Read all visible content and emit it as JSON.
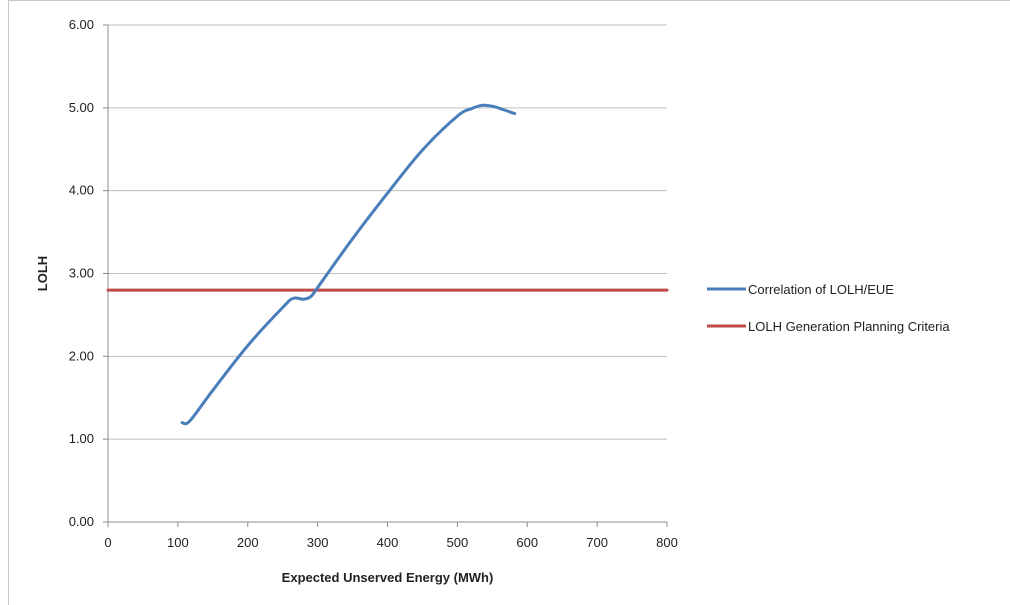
{
  "chart_data": {
    "type": "line",
    "title": "",
    "xlabel": "Expected Unserved Energy (MWh)",
    "ylabel": "LOLH",
    "xlim": [
      0,
      800
    ],
    "ylim": [
      0,
      6
    ],
    "x_ticks": [
      0,
      100,
      200,
      300,
      400,
      500,
      600,
      700,
      800
    ],
    "x_tick_labels": [
      "0",
      "100",
      "200",
      "300",
      "400",
      "500",
      "600",
      "700",
      "800"
    ],
    "y_ticks": [
      0,
      1,
      2,
      3,
      4,
      5,
      6
    ],
    "y_tick_labels": [
      "0.00",
      "1.00",
      "2.00",
      "3.00",
      "4.00",
      "5.00",
      "6.00"
    ],
    "grid": "horizontal",
    "legend_position": "right",
    "series": [
      {
        "name": "Correlation of LOLH/EUE",
        "color": "#4a7ebb",
        "x": [
          106,
          117,
          150,
          200,
          250,
          265,
          280,
          290,
          300,
          350,
          400,
          450,
          500,
          520,
          535,
          550,
          565,
          582
        ],
        "y": [
          1.2,
          1.22,
          1.59,
          2.13,
          2.59,
          2.7,
          2.69,
          2.72,
          2.83,
          3.42,
          3.97,
          4.49,
          4.9,
          4.99,
          5.03,
          5.02,
          4.98,
          4.93
        ]
      },
      {
        "name": "LOLH Generation Planning Criteria",
        "color": "#be4b48",
        "x": [
          0,
          800
        ],
        "y": [
          2.8,
          2.8
        ]
      }
    ]
  }
}
